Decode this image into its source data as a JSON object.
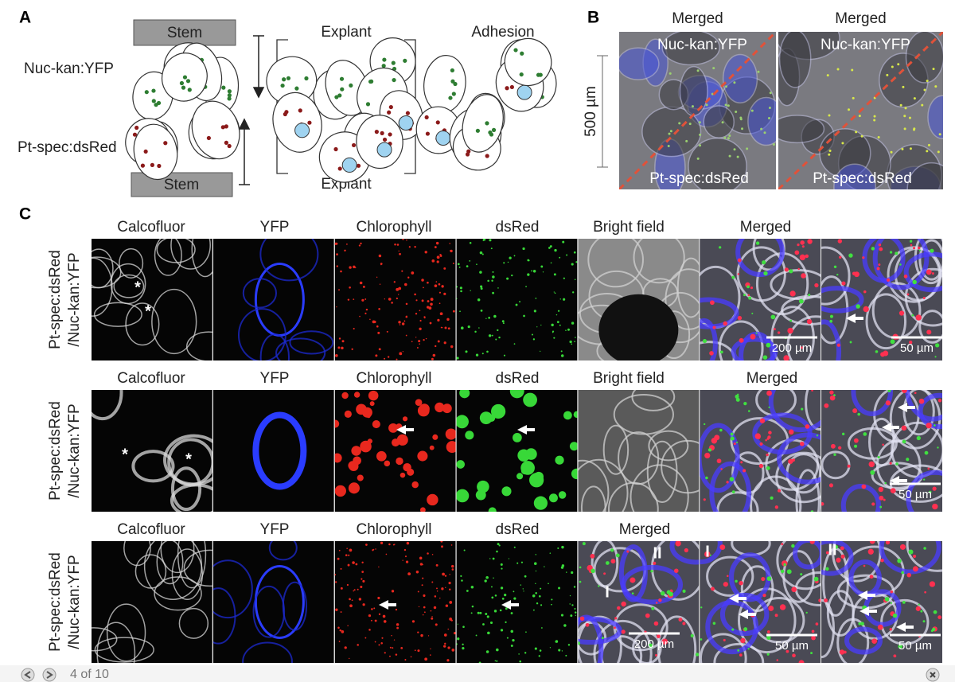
{
  "panel_a": {
    "label": "A",
    "top_stem": "Stem",
    "bottom_stem": "Stem",
    "top_line": "Nuc-kan:YFP",
    "bottom_line": "Pt-spec:dsRed",
    "explant_top": "Explant",
    "explant_bottom": "Explant",
    "adhesion": "Adhesion"
  },
  "panel_b": {
    "label": "B",
    "scale": "500 µm",
    "images": [
      {
        "title": "Merged",
        "top": "Nuc-kan:YFP",
        "bottom": "Pt-spec:dsRed"
      },
      {
        "title": "Merged",
        "top": "Nuc-kan:YFP",
        "bottom": "Pt-spec:dsRed"
      }
    ]
  },
  "panel_c": {
    "label": "C",
    "rows": [
      {
        "side": [
          "Pt-spec:dsRed",
          "/Nuc-kan:YFP"
        ],
        "columns": [
          "Calcofluor",
          "YFP",
          "Chlorophyll",
          "dsRed",
          "Bright field",
          "Merged"
        ],
        "tiles": [
          [
            "*",
            "*"
          ],
          [],
          [],
          [],
          [],
          [
            "200 µm"
          ],
          [
            "50 µm"
          ]
        ]
      },
      {
        "side": [
          "Pt-spec:dsRed",
          "/Nuc-kan:YFP"
        ],
        "columns": [
          "Calcofluor",
          "YFP",
          "Chlorophyll",
          "dsRed",
          "Bright field",
          "Merged"
        ],
        "tiles": [
          [
            "*",
            "*"
          ],
          [],
          [],
          [],
          [],
          [],
          [
            "50 µm"
          ]
        ]
      },
      {
        "side": [
          "Pt-spec:dsRed",
          "/Nuc-kan:YFP"
        ],
        "columns": [
          "Calcofluor",
          "YFP",
          "Chlorophyll",
          "dsRed",
          "Merged"
        ],
        "tiles": [
          [],
          [],
          [],
          [],
          [
            "II",
            "I",
            "200 µm"
          ],
          [
            "I",
            "50 µm"
          ],
          [
            "II",
            "50 µm"
          ]
        ]
      }
    ]
  },
  "viewer": {
    "counter": "4 of 10"
  }
}
